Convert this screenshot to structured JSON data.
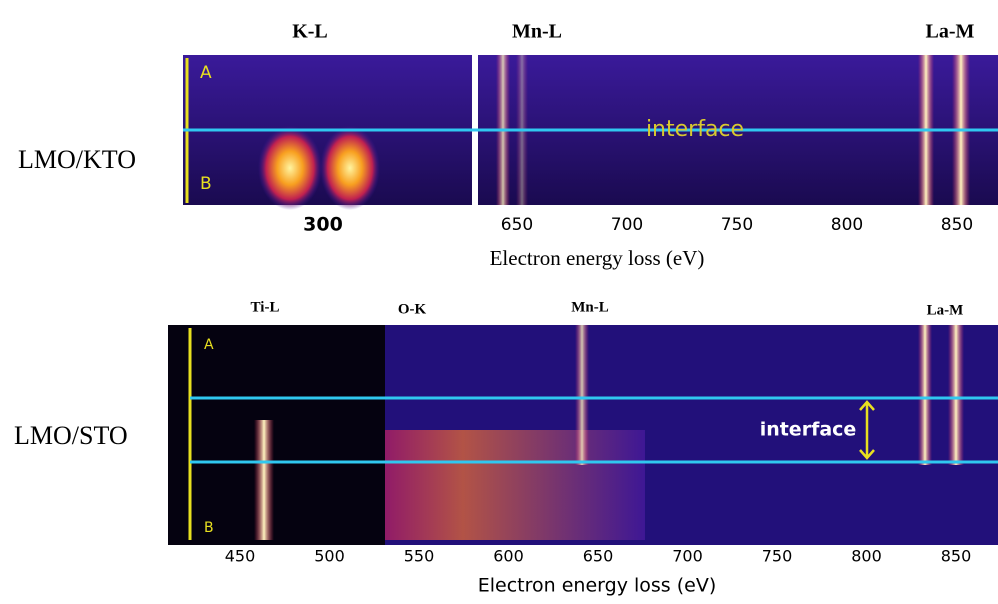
{
  "panels": [
    {
      "sample": "LMO/KTO",
      "edges": [
        "K-L",
        "Mn-L",
        "La-M"
      ],
      "markers": [
        "A",
        "B"
      ],
      "annotation": "interface",
      "inset_tick": "300",
      "ticks": [
        650,
        700,
        750,
        800,
        850
      ],
      "axis_label": "Electron energy loss (eV)"
    },
    {
      "sample": "LMO/STO",
      "edges": [
        "Ti-L",
        "O-K",
        "Mn-L",
        "La-M"
      ],
      "markers": [
        "A",
        "B"
      ],
      "annotation": "interface",
      "ticks": [
        450,
        500,
        550,
        600,
        650,
        700,
        750,
        800,
        850
      ],
      "axis_label": "Electron energy loss (eV)"
    }
  ]
}
